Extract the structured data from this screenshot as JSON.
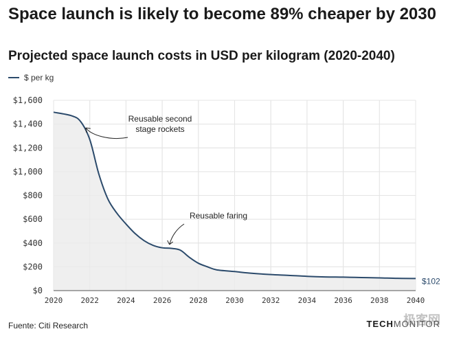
{
  "chart_data": {
    "type": "area",
    "title": "Space launch is likely to become 89% cheaper by 2030",
    "subtitle": "Projected space launch costs in USD per kilogram (2020-2040)",
    "legend": [
      "$ per kg"
    ],
    "legend_position": "top-left",
    "series": [
      {
        "name": "$ per kg",
        "x": [
          2020,
          2021,
          2021.5,
          2022,
          2022.5,
          2023,
          2023.5,
          2024,
          2024.5,
          2025,
          2025.5,
          2026,
          2026.5,
          2027,
          2027.5,
          2028,
          2028.5,
          2029,
          2030,
          2031,
          2032,
          2033,
          2034,
          2035,
          2036,
          2037,
          2038,
          2039,
          2040
        ],
        "values": [
          1500,
          1470,
          1420,
          1270,
          980,
          770,
          650,
          560,
          480,
          420,
          380,
          360,
          355,
          340,
          280,
          230,
          200,
          175,
          160,
          145,
          135,
          128,
          120,
          115,
          113,
          110,
          107,
          103,
          102
        ]
      }
    ],
    "xlim": [
      2020,
      2040
    ],
    "ylim": [
      0,
      1600
    ],
    "x_ticks": [
      "2020",
      "2022",
      "2024",
      "2026",
      "2028",
      "2030",
      "2032",
      "2034",
      "2036",
      "2038",
      "2040"
    ],
    "y_ticks": [
      "$0",
      "$200",
      "$400",
      "$600",
      "$800",
      "$1,000",
      "$1,200",
      "$1,400",
      "$1,600"
    ],
    "y_tick_values": [
      0,
      200,
      400,
      600,
      800,
      1000,
      1200,
      1400,
      1600
    ],
    "grid": true,
    "annotations": [
      {
        "lines": [
          "Reusable second",
          "stage rockets"
        ],
        "x": 2021.7,
        "y": 1380
      },
      {
        "lines": [
          "Reusable faring"
        ],
        "x": 2026.4,
        "y": 370
      }
    ],
    "end_label": "$102",
    "colors": {
      "line": "#2b4a6b",
      "area": "#efefef",
      "grid": "#e2e2e2"
    }
  },
  "source": "Fuente: Citi Research",
  "brand": {
    "bold": "TECH",
    "rest": "MONITOR"
  },
  "watermark": "极客网"
}
